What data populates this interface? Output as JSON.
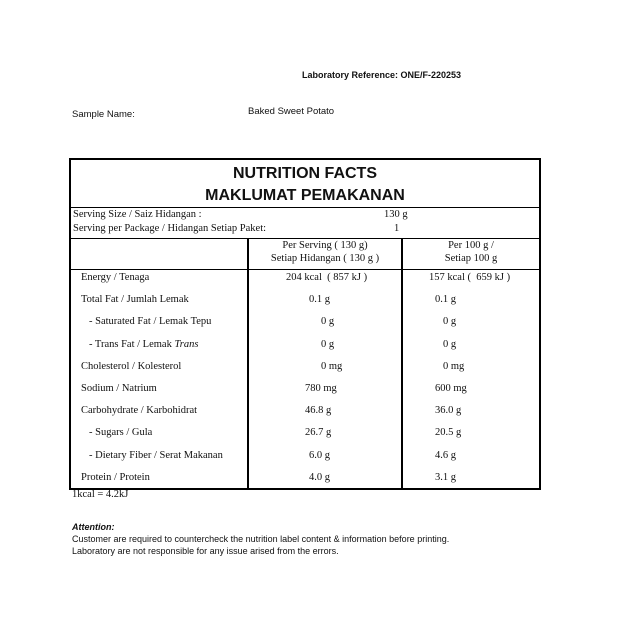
{
  "lab_reference": "Laboratory Reference: ONE/F-220253",
  "sample_name_label": "Sample Name:",
  "sample_name": "Baked Sweet Potato",
  "title_en": "NUTRITION FACTS",
  "title_ms": "MAKLUMAT PEMAKANAN",
  "serving_size_label": "Serving Size / Saiz Hidangan :",
  "serving_size": "130 g",
  "serving_pkg_label": "Serving per Package / Hidangan Setiap Paket:",
  "serving_pkg": "1",
  "col1_line1": "Per Serving ( 130 g)",
  "col1_line2": "Setiap Hidangan ( 130 g )",
  "col2_line1": "Per 100 g /",
  "col2_line2": "Setiap 100 g",
  "rows": [
    {
      "name": "Energy / Tenaga",
      "per_serving": "204 kcal  ( 857 kJ )",
      "per_100g": "157 kcal (  659 kJ )"
    },
    {
      "name": "Total Fat / Jumlah Lemak",
      "per_serving": "0.1 g",
      "per_100g": "0.1 g"
    },
    {
      "name": "- Saturated Fat / Lemak Tepu",
      "per_serving": "0 g",
      "per_100g": "0 g"
    },
    {
      "name": "- Trans Fat / Lemak ",
      "name_italic": "Trans",
      "per_serving": "0 g",
      "per_100g": "0 g"
    },
    {
      "name": "Cholesterol / Kolesterol",
      "per_serving": "0 mg",
      "per_100g": "0 mg"
    },
    {
      "name": "Sodium / Natrium",
      "per_serving": "780 mg",
      "per_100g": "600 mg"
    },
    {
      "name": "Carbohydrate / Karbohidrat",
      "per_serving": "46.8 g",
      "per_100g": "36.0 g"
    },
    {
      "name": "- Sugars / Gula",
      "per_serving": "26.7 g",
      "per_100g": "20.5 g"
    },
    {
      "name": "- Dietary Fiber / Serat Makanan",
      "per_serving": "6.0 g",
      "per_100g": "4.6 g"
    },
    {
      "name": "Protein / Protein",
      "per_serving": "4.0 g",
      "per_100g": "3.1 g"
    }
  ],
  "conversion": "1kcal = 4.2kJ",
  "attention_title": "Attention:",
  "attention_line1": "Customer are required to countercheck the nutrition label content & information before printing.",
  "attention_line2": "Laboratory are not responsible for any issue arised from the errors."
}
